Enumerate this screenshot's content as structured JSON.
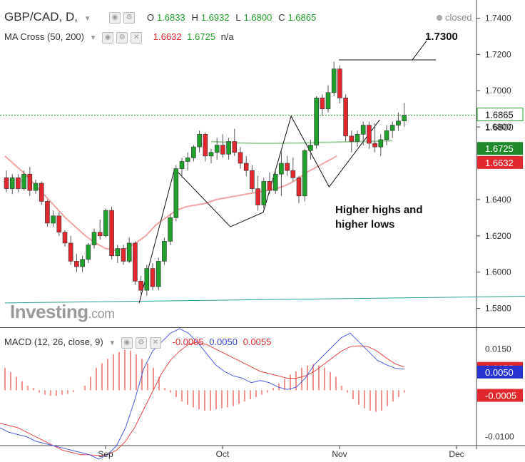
{
  "header": {
    "symbol": "GBP/CAD, D,",
    "open_label": "O",
    "open": "1.6833",
    "high_label": "H",
    "high": "1.6932",
    "low_label": "L",
    "low": "1.6800",
    "close_label": "C",
    "close": "1.6865",
    "status": "closed"
  },
  "ma_legend": {
    "name": "MA Cross (50, 200)",
    "v1": "1.6632",
    "v2": "1.6725",
    "v3": "n/a"
  },
  "macd_legend": {
    "name": "MACD (12, 26, close, 9)",
    "v1": "-0.0005",
    "v2": "0.0050",
    "v3": "0.0055"
  },
  "watermark": {
    "brand": "Investing",
    "suffix": ".com"
  },
  "colors": {
    "up": "#1fa02b",
    "down": "#e0282e",
    "ma50": "#f2a3a3",
    "ma200": "#9fd19f",
    "macd": "#4d5ee0",
    "signal": "#e84848",
    "trend": "#2a9d8f"
  },
  "chart_data": [
    {
      "type": "candlestick",
      "title": "GBP/CAD, D,",
      "ylim": [
        1.57,
        1.75
      ],
      "yticks": [
        "1.7400",
        "1.7200",
        "1.7000",
        "1.6800",
        "1.6400",
        "1.6200",
        "1.6000",
        "1.5800"
      ],
      "ytick_values": [
        1.74,
        1.72,
        1.7,
        1.68,
        1.64,
        1.62,
        1.6,
        1.58
      ],
      "xticks": [
        {
          "label": "Sep",
          "index": 26
        },
        {
          "label": "Oct",
          "index": 50
        },
        {
          "label": "Nov",
          "index": 75
        },
        {
          "label": "Dec",
          "index": 100
        }
      ],
      "annotations": {
        "level_label": "1.7300",
        "text_line1": "Higher highs and",
        "text_line2": "higher lows"
      },
      "price_labels": [
        {
          "text": "1.6865",
          "value": 1.6865,
          "style": "last"
        },
        {
          "text": "1.6800",
          "value": 1.68,
          "style": "plain"
        },
        {
          "text": "1.6725",
          "value": 1.6725,
          "style": "ma200"
        },
        {
          "text": "1.6632",
          "value": 1.6632,
          "style": "ma50"
        }
      ],
      "ohlc": [
        [
          1.652,
          1.656,
          1.644,
          1.646
        ],
        [
          1.646,
          1.654,
          1.643,
          1.652
        ],
        [
          1.652,
          1.654,
          1.644,
          1.646
        ],
        [
          1.646,
          1.656,
          1.645,
          1.654
        ],
        [
          1.654,
          1.658,
          1.642,
          1.645
        ],
        [
          1.645,
          1.651,
          1.643,
          1.649
        ],
        [
          1.649,
          1.65,
          1.637,
          1.639
        ],
        [
          1.639,
          1.64,
          1.625,
          1.627
        ],
        [
          1.627,
          1.634,
          1.625,
          1.631
        ],
        [
          1.631,
          1.633,
          1.62,
          1.622
        ],
        [
          1.622,
          1.623,
          1.614,
          1.616
        ],
        [
          1.616,
          1.62,
          1.604,
          1.606
        ],
        [
          1.606,
          1.61,
          1.6,
          1.603
        ],
        [
          1.603,
          1.609,
          1.6,
          1.607
        ],
        [
          1.607,
          1.616,
          1.605,
          1.615
        ],
        [
          1.615,
          1.624,
          1.613,
          1.622
        ],
        [
          1.622,
          1.629,
          1.618,
          1.62
        ],
        [
          1.62,
          1.635,
          1.619,
          1.634
        ],
        [
          1.634,
          1.636,
          1.607,
          1.609
        ],
        [
          1.609,
          1.615,
          1.605,
          1.613
        ],
        [
          1.613,
          1.615,
          1.604,
          1.606
        ],
        [
          1.606,
          1.619,
          1.605,
          1.616
        ],
        [
          1.616,
          1.617,
          1.593,
          1.595
        ],
        [
          1.595,
          1.598,
          1.588,
          1.59
        ],
        [
          1.59,
          1.604,
          1.587,
          1.602
        ],
        [
          1.602,
          1.605,
          1.59,
          1.592
        ],
        [
          1.592,
          1.608,
          1.59,
          1.606
        ],
        [
          1.606,
          1.619,
          1.604,
          1.617
        ],
        [
          1.617,
          1.632,
          1.615,
          1.63
        ],
        [
          1.63,
          1.659,
          1.628,
          1.657
        ],
        [
          1.657,
          1.663,
          1.652,
          1.661
        ],
        [
          1.661,
          1.666,
          1.656,
          1.663
        ],
        [
          1.663,
          1.67,
          1.661,
          1.669
        ],
        [
          1.669,
          1.678,
          1.666,
          1.676
        ],
        [
          1.676,
          1.677,
          1.661,
          1.664
        ],
        [
          1.664,
          1.668,
          1.66,
          1.666
        ],
        [
          1.666,
          1.674,
          1.662,
          1.67
        ],
        [
          1.67,
          1.676,
          1.663,
          1.665
        ],
        [
          1.665,
          1.674,
          1.662,
          1.672
        ],
        [
          1.672,
          1.679,
          1.664,
          1.666
        ],
        [
          1.666,
          1.669,
          1.657,
          1.66
        ],
        [
          1.66,
          1.664,
          1.653,
          1.656
        ],
        [
          1.656,
          1.659,
          1.644,
          1.646
        ],
        [
          1.646,
          1.653,
          1.634,
          1.637
        ],
        [
          1.637,
          1.652,
          1.635,
          1.65
        ],
        [
          1.65,
          1.655,
          1.643,
          1.645
        ],
        [
          1.645,
          1.656,
          1.643,
          1.654
        ],
        [
          1.654,
          1.668,
          1.642,
          1.66
        ],
        [
          1.66,
          1.664,
          1.653,
          1.656
        ],
        [
          1.656,
          1.663,
          1.65,
          1.652
        ],
        [
          1.652,
          1.653,
          1.638,
          1.642
        ],
        [
          1.642,
          1.668,
          1.639,
          1.667
        ],
        [
          1.667,
          1.673,
          1.662,
          1.67
        ],
        [
          1.67,
          1.697,
          1.668,
          1.696
        ],
        [
          1.696,
          1.698,
          1.686,
          1.69
        ],
        [
          1.69,
          1.703,
          1.688,
          1.699
        ],
        [
          1.699,
          1.716,
          1.697,
          1.712
        ],
        [
          1.712,
          1.714,
          1.693,
          1.696
        ],
        [
          1.696,
          1.698,
          1.672,
          1.675
        ],
        [
          1.675,
          1.678,
          1.666,
          1.672
        ],
        [
          1.672,
          1.678,
          1.669,
          1.676
        ],
        [
          1.676,
          1.683,
          1.67,
          1.681
        ],
        [
          1.681,
          1.683,
          1.668,
          1.671
        ],
        [
          1.671,
          1.682,
          1.666,
          1.669
        ],
        [
          1.669,
          1.676,
          1.664,
          1.673
        ],
        [
          1.673,
          1.681,
          1.67,
          1.678
        ],
        [
          1.678,
          1.683,
          1.674,
          1.681
        ],
        [
          1.681,
          1.688,
          1.678,
          1.6833
        ],
        [
          1.6833,
          1.6932,
          1.68,
          1.6865
        ]
      ],
      "ohlc_start_index": 0,
      "ma50": [
        1.664,
        1.659,
        1.654,
        1.648,
        1.642,
        1.636,
        1.63,
        1.625,
        1.62,
        1.616,
        1.613,
        1.612,
        1.613,
        1.616,
        1.62,
        1.626,
        1.63,
        1.634,
        1.636,
        1.637,
        1.638,
        1.64,
        1.641,
        1.642,
        1.643,
        1.644,
        1.645,
        1.646,
        1.648,
        1.651,
        1.655,
        1.658,
        1.661,
        1.664
      ],
      "ma50_start_index": 0,
      "ma50_step": 2,
      "ma200": [
        1.672,
        1.6716,
        1.6712,
        1.671,
        1.671,
        1.6711,
        1.6712,
        1.6714,
        1.6716,
        1.6718,
        1.672,
        1.6722,
        1.6725
      ],
      "ma200_start_index": 41,
      "ma200_step": 3,
      "trendline": {
        "from": [
          0,
          1.583
        ],
        "to": [
          170,
          1.589
        ]
      },
      "pattern_line": [
        [
          53,
          1.583
        ],
        [
          67,
          1.657
        ],
        [
          89,
          1.625
        ],
        [
          102,
          1.633
        ],
        [
          113,
          1.686
        ],
        [
          128,
          1.647
        ],
        [
          148,
          1.684
        ]
      ],
      "resistance_line": [
        [
          117,
          1.717
        ],
        [
          151,
          1.717
        ]
      ]
    },
    {
      "type": "macd",
      "title": "MACD (12, 26, close, 9)",
      "ylim": [
        -0.0115,
        0.014
      ],
      "yticks": [
        "0.0150",
        "-0.0100"
      ],
      "ytick_values": [
        0.015,
        -0.01
      ],
      "price_labels": [
        {
          "text": "0.0055",
          "value": 0.0055,
          "style": "signal"
        },
        {
          "text": "0.0050",
          "value": 0.005,
          "style": "macd"
        },
        {
          "text": "-0.0005",
          "value": -0.0005,
          "style": "hist"
        }
      ],
      "macd": [
        -0.0075,
        -0.008,
        -0.009,
        -0.0095,
        -0.01,
        -0.011,
        -0.0115,
        -0.012,
        -0.0125,
        -0.013,
        -0.0135,
        -0.014,
        -0.015,
        -0.014,
        -0.012,
        -0.008,
        -0.002,
        0.005,
        0.009,
        0.011,
        0.013,
        0.014,
        0.013,
        0.011,
        0.0085,
        0.006,
        0.0045,
        0.0035,
        0.003,
        0.002,
        0.0025,
        0.002,
        0.001,
        0.0005,
        0.001,
        0.003,
        0.006,
        0.008,
        0.01,
        0.012,
        0.013,
        0.011,
        0.009,
        0.007,
        0.006,
        0.0052,
        0.005
      ],
      "signal": [
        -0.006,
        -0.007,
        -0.0075,
        -0.008,
        -0.009,
        -0.01,
        -0.011,
        -0.012,
        -0.013,
        -0.0135,
        -0.014,
        -0.014,
        -0.0142,
        -0.014,
        -0.013,
        -0.011,
        -0.008,
        -0.004,
        0.0,
        0.004,
        0.007,
        0.009,
        0.0105,
        0.011,
        0.0105,
        0.0095,
        0.0085,
        0.0075,
        0.0065,
        0.0055,
        0.0045,
        0.004,
        0.0035,
        0.003,
        0.003,
        0.0035,
        0.0045,
        0.006,
        0.0075,
        0.009,
        0.01,
        0.0102,
        0.01,
        0.009,
        0.0075,
        0.0062,
        0.0055
      ],
      "line_step": 3.5,
      "histogram": [
        0.005,
        0.004,
        0.003,
        0.002,
        0.001,
        0.0005,
        -0.0005,
        -0.001,
        -0.0012,
        -0.0012,
        -0.001,
        -0.0008,
        -0.0004,
        0.0,
        0.001,
        0.003,
        0.005,
        0.006,
        0.007,
        0.008,
        0.0085,
        0.009,
        0.0088,
        0.008,
        0.007,
        0.006,
        0.005,
        0.003,
        0.0005,
        -0.0005,
        -0.0015,
        -0.0025,
        -0.0032,
        -0.0038,
        -0.0042,
        -0.0045,
        -0.0045,
        -0.0042,
        -0.004,
        -0.0038,
        -0.0035,
        -0.003,
        -0.0025,
        -0.002,
        -0.0015,
        -0.001,
        -0.0005,
        0.0005,
        0.0015,
        0.0025,
        0.0035,
        0.0042,
        0.005,
        0.0055,
        0.0058,
        0.0055,
        0.005,
        0.004,
        0.003,
        0.001,
        -0.0005,
        -0.002,
        -0.0032,
        -0.004,
        -0.0045,
        -0.0048,
        -0.0045,
        -0.0035,
        -0.0025,
        -0.0015,
        -0.0005
      ]
    }
  ]
}
